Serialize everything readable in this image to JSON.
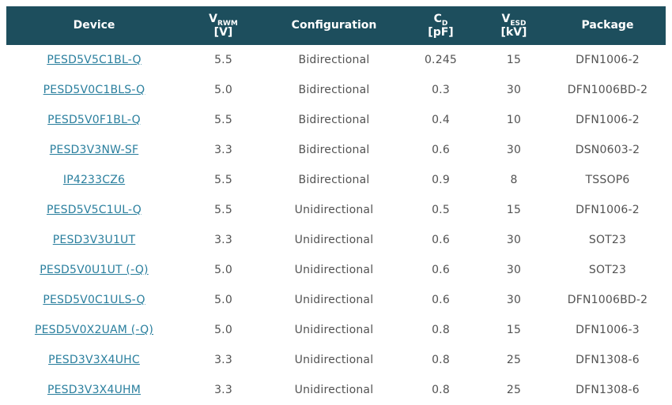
{
  "styles": {
    "header_bg": "#1d4e5d",
    "header_text": "#ffffff",
    "link_color": "#2a7f9e",
    "body_text": "#525252",
    "page_bg": "#ffffff"
  },
  "chart_data": {
    "type": "table",
    "columns": [
      {
        "label": "Device"
      },
      {
        "symbol": "V",
        "subscript": "RWM",
        "unit": "[V]"
      },
      {
        "label": "Configuration"
      },
      {
        "symbol": "C",
        "subscript": "D",
        "unit": "[pF]"
      },
      {
        "symbol": "V",
        "subscript": "ESD",
        "unit": "[kV]"
      },
      {
        "label": "Package"
      }
    ],
    "rows": [
      {
        "device": "PESD5V5C1BL-Q",
        "vrwm": "5.5",
        "configuration": "Bidirectional",
        "cd": "0.245",
        "vesd": "15",
        "package": "DFN1006-2"
      },
      {
        "device": "PESD5V0C1BLS-Q",
        "vrwm": "5.0",
        "configuration": "Bidirectional",
        "cd": "0.3",
        "vesd": "30",
        "package": "DFN1006BD-2"
      },
      {
        "device": "PESD5V0F1BL-Q",
        "vrwm": "5.5",
        "configuration": "Bidirectional",
        "cd": "0.4",
        "vesd": "10",
        "package": "DFN1006-2"
      },
      {
        "device": "PESD3V3NW-SF",
        "vrwm": "3.3",
        "configuration": "Bidirectional",
        "cd": "0.6",
        "vesd": "30",
        "package": "DSN0603-2"
      },
      {
        "device": "IP4233CZ6",
        "vrwm": "5.5",
        "configuration": "Bidirectional",
        "cd": "0.9",
        "vesd": "8",
        "package": "TSSOP6"
      },
      {
        "device": "PESD5V5C1UL-Q",
        "vrwm": "5.5",
        "configuration": "Unidirectional",
        "cd": "0.5",
        "vesd": "15",
        "package": "DFN1006-2"
      },
      {
        "device": "PESD3V3U1UT",
        "vrwm": "3.3",
        "configuration": "Unidirectional",
        "cd": "0.6",
        "vesd": "30",
        "package": "SOT23"
      },
      {
        "device": "PESD5V0U1UT (-Q)",
        "vrwm": "5.0",
        "configuration": "Unidirectional",
        "cd": "0.6",
        "vesd": "30",
        "package": "SOT23"
      },
      {
        "device": "PESD5V0C1ULS-Q",
        "vrwm": "5.0",
        "configuration": "Unidirectional",
        "cd": "0.6",
        "vesd": "30",
        "package": "DFN1006BD-2"
      },
      {
        "device": "PESD5V0X2UAM (-Q)",
        "vrwm": "5.0",
        "configuration": "Unidirectional",
        "cd": "0.8",
        "vesd": "15",
        "package": "DFN1006-3"
      },
      {
        "device": "PESD3V3X4UHC",
        "vrwm": "3.3",
        "configuration": "Unidirectional",
        "cd": "0.8",
        "vesd": "25",
        "package": "DFN1308-6"
      },
      {
        "device": "PESD3V3X4UHM",
        "vrwm": "3.3",
        "configuration": "Unidirectional",
        "cd": "0.8",
        "vesd": "25",
        "package": "DFN1308-6"
      }
    ]
  }
}
